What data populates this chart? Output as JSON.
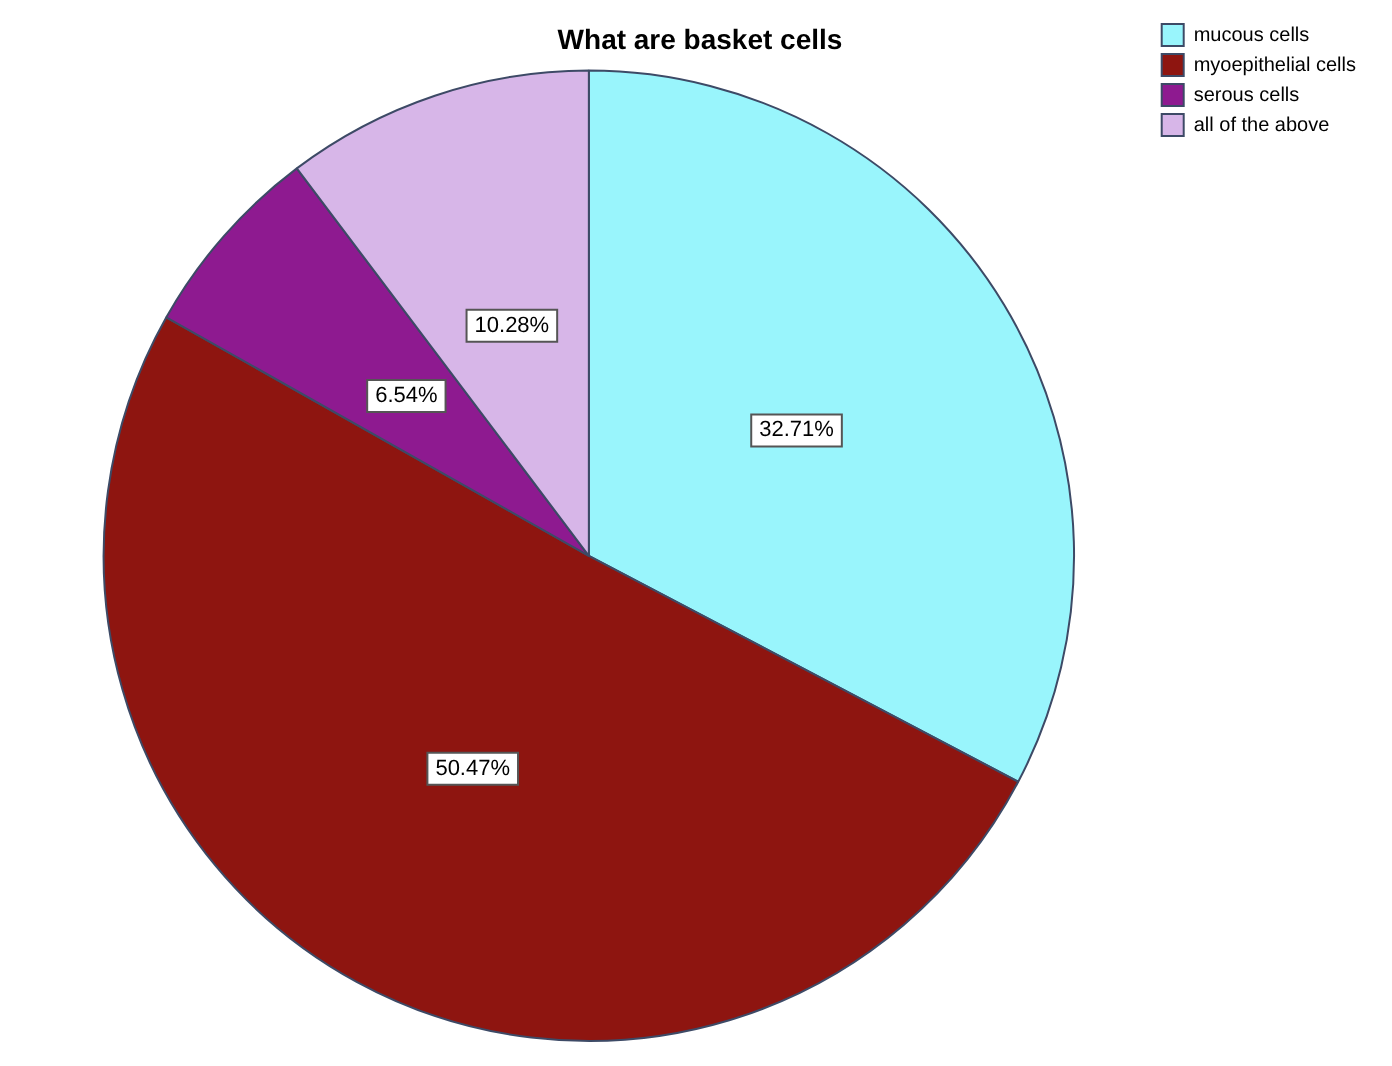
{
  "chart_data": {
    "type": "pie",
    "title": "What are basket cells",
    "categories": [
      "mucous cells",
      "myoepithelial cells",
      "serous cells",
      "all of the above"
    ],
    "values": [
      32.71,
      50.47,
      6.54,
      10.28
    ],
    "colors": [
      "#99f5fc",
      "#8e1510",
      "#8e1a90",
      "#d7b6e8"
    ],
    "value_labels": [
      "32.71%",
      "50.47%",
      "6.54%",
      "10.28%"
    ],
    "legend": "top right"
  }
}
